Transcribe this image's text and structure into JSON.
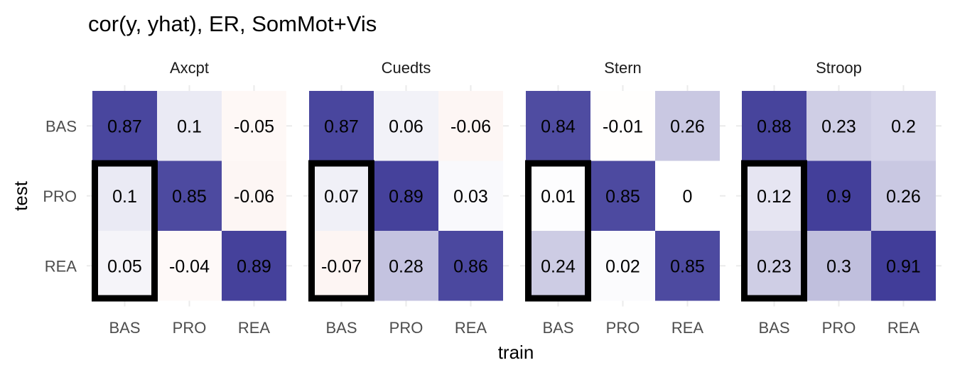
{
  "chart_data": {
    "type": "heatmap",
    "title": "cor(y, yhat), ER, SomMot+Vis",
    "xlabel": "train",
    "ylabel": "test",
    "x_categories": [
      "BAS",
      "PRO",
      "REA"
    ],
    "y_categories": [
      "BAS",
      "PRO",
      "REA"
    ],
    "color_scale": {
      "low": "#e26a4e",
      "mid": "#ffffff",
      "high": "#2e2a8f",
      "domain": [
        -1,
        0,
        1
      ]
    },
    "highlight": {
      "column": "BAS",
      "color": "#000000"
    },
    "panels": [
      {
        "name": "Axcpt",
        "values": [
          [
            0.87,
            0.1,
            -0.05
          ],
          [
            0.1,
            0.85,
            -0.06
          ],
          [
            0.05,
            -0.04,
            0.89
          ]
        ]
      },
      {
        "name": "Cuedts",
        "values": [
          [
            0.87,
            0.06,
            -0.06
          ],
          [
            0.07,
            0.89,
            0.03
          ],
          [
            -0.07,
            0.28,
            0.86
          ]
        ]
      },
      {
        "name": "Stern",
        "values": [
          [
            0.84,
            -0.01,
            0.26
          ],
          [
            0.01,
            0.85,
            0
          ],
          [
            0.24,
            0.02,
            0.85
          ]
        ]
      },
      {
        "name": "Stroop",
        "values": [
          [
            0.88,
            0.23,
            0.2
          ],
          [
            0.12,
            0.9,
            0.26
          ],
          [
            0.23,
            0.3,
            0.91
          ]
        ]
      }
    ]
  }
}
